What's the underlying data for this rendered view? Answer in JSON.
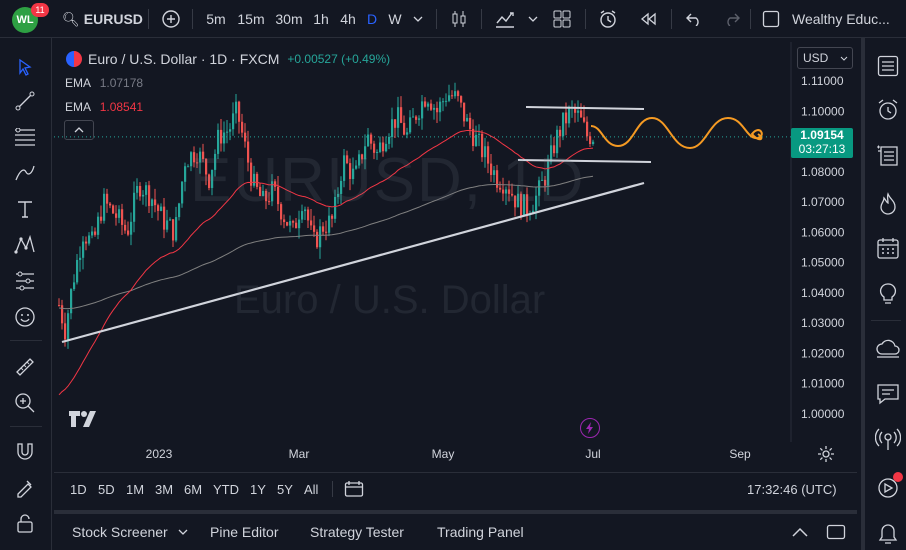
{
  "top": {
    "badge_count": "11",
    "symbol": "EURUSD",
    "intervals": [
      "5m",
      "15m",
      "30m",
      "1h",
      "4h",
      "D",
      "W"
    ],
    "active_interval": "D",
    "account": "Wealthy Educ..."
  },
  "legend": {
    "title": "Euro / U.S. Dollar · 1D · FXCM",
    "change": "+0.00527 (+0.49%)",
    "ema1_label": "EMA",
    "ema1_value": "1.07178",
    "ema2_label": "EMA",
    "ema2_value": "1.08541",
    "collapse_icon": "chevron-up"
  },
  "watermark": {
    "symbol": "EURUSD, 1D",
    "name": "Euro / U.S. Dollar"
  },
  "currency": "USD",
  "price_tag": {
    "price": "1.09154",
    "countdown": "03:27:13"
  },
  "colors": {
    "up": "#26a69a",
    "down": "#ef5350",
    "ema_fast": "#f23645",
    "ema_slow": "#808080",
    "trend": "#d1d4dc",
    "projection": "#f59a23",
    "accent": "#2962ff"
  },
  "chart_data": {
    "type": "candlestick",
    "y_ticks": [
      "1.11000",
      "1.10000",
      "1.09000",
      "1.08000",
      "1.07000",
      "1.06000",
      "1.05000",
      "1.04000",
      "1.03000",
      "1.02000",
      "1.01000",
      "1.00000"
    ],
    "x_ticks": [
      "2023",
      "Mar",
      "May",
      "Jul",
      "Sep"
    ],
    "ylim": [
      0.9985,
      1.1125
    ],
    "last_price": 1.09154,
    "series": [
      {
        "name": "EMA",
        "value": 1.07178
      },
      {
        "name": "EMA",
        "value": 1.08541
      }
    ],
    "annotations": [
      "support trendline",
      "range high ~1.1008",
      "range low ~1.0838",
      "projected oscillation"
    ]
  },
  "bottom": {
    "ranges": [
      "1D",
      "5D",
      "1M",
      "3M",
      "6M",
      "YTD",
      "1Y",
      "5Y",
      "All"
    ],
    "time": "17:32:46 (UTC)"
  },
  "panels": [
    "Stock Screener",
    "Pine Editor",
    "Strategy Tester",
    "Trading Panel"
  ]
}
